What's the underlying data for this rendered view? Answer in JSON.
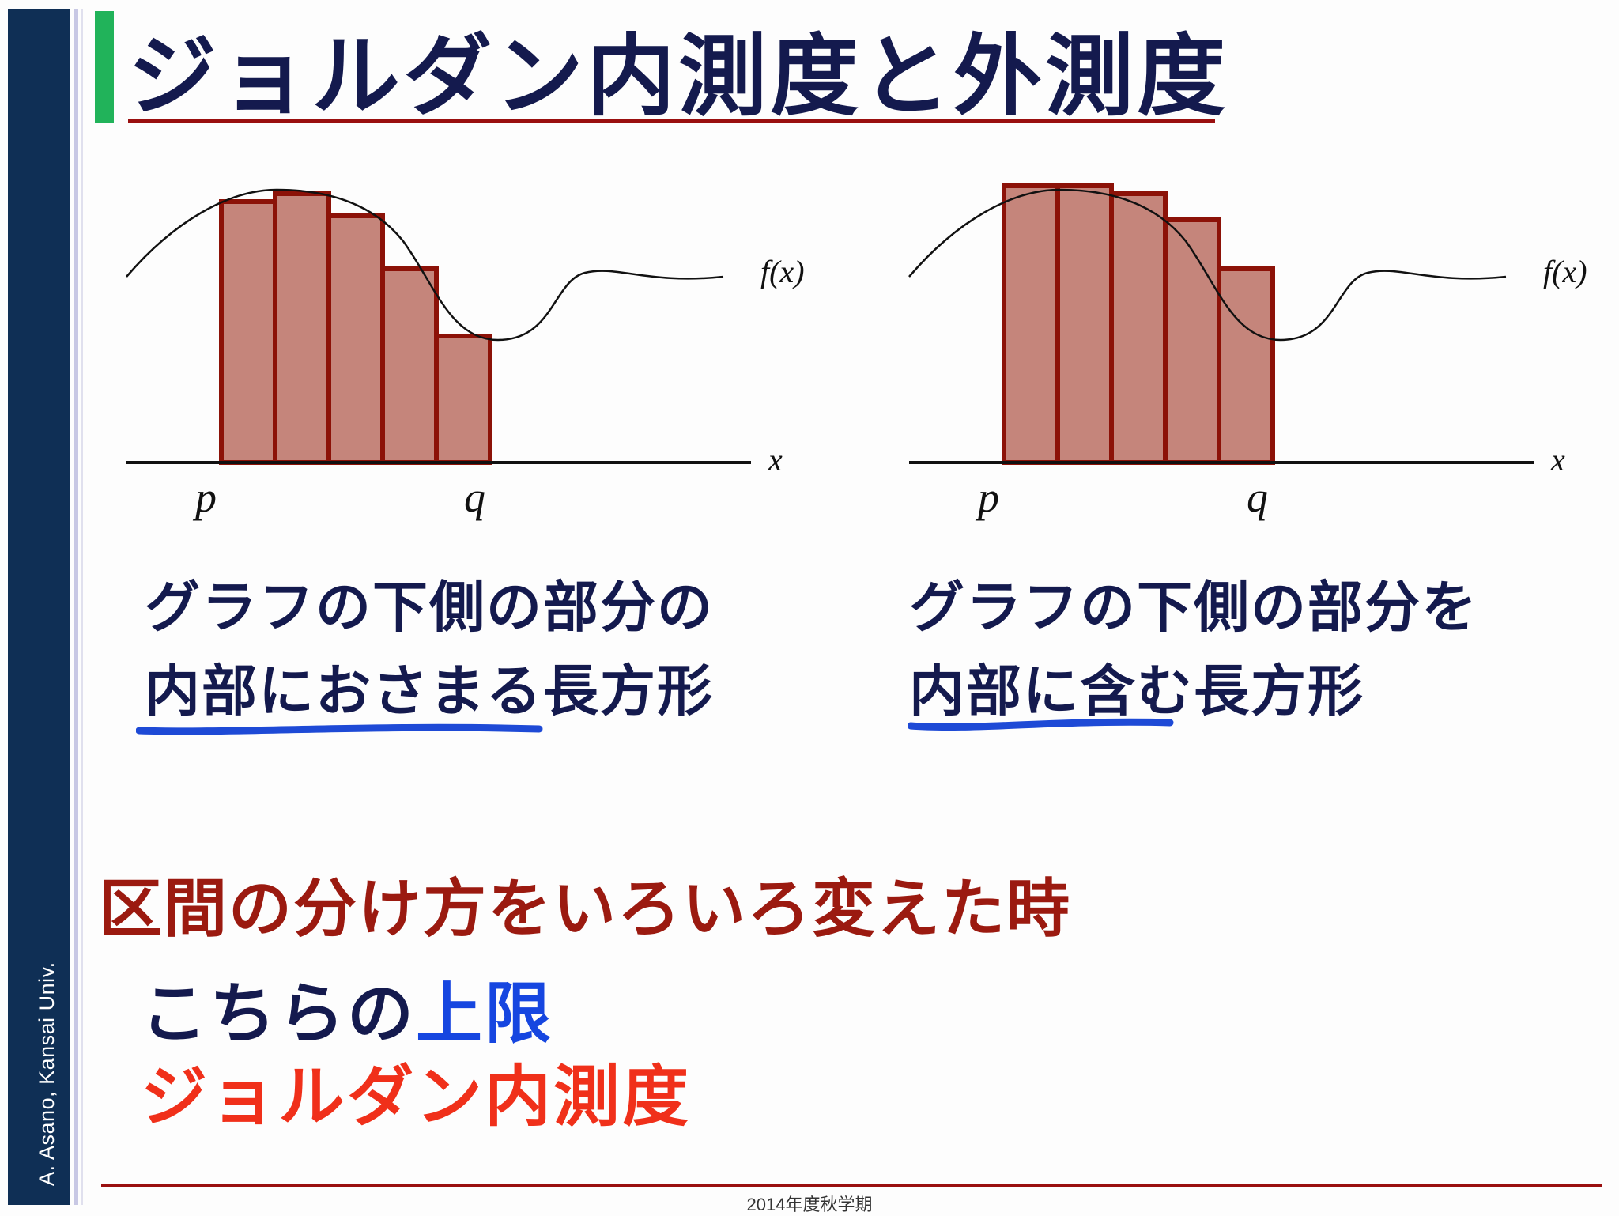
{
  "sidebar": {
    "author": "A. Asano, Kansai Univ."
  },
  "title": "ジョルダン内測度と外測度",
  "graphs": {
    "left": {
      "curve_label": "f(x)",
      "axis_label": "x",
      "p_label": "p",
      "q_label": "q"
    },
    "right": {
      "curve_label": "f(x)",
      "axis_label": "x",
      "p_label": "p",
      "q_label": "q"
    }
  },
  "captions": {
    "left": {
      "line1": "グラフの下側の部分の",
      "line2": "内部におさまる長方形"
    },
    "right": {
      "line1": "グラフの下側の部分を",
      "line2": "内部に含む長方形"
    }
  },
  "note": "区間の分け方をいろいろ変えた時",
  "result": {
    "line1_prefix": "こちらの",
    "line1_highlight": "上限",
    "line2": "ジョルダン内測度"
  },
  "footer": "2014年度秋学期",
  "colors": {
    "navy": "#141a4e",
    "dark_red": "#9b1a10",
    "blue": "#1646e0",
    "red": "#f0301a",
    "green_accent": "#21b35a",
    "bar_fill": "#c5857b",
    "bar_edge": "#8c1208"
  }
}
